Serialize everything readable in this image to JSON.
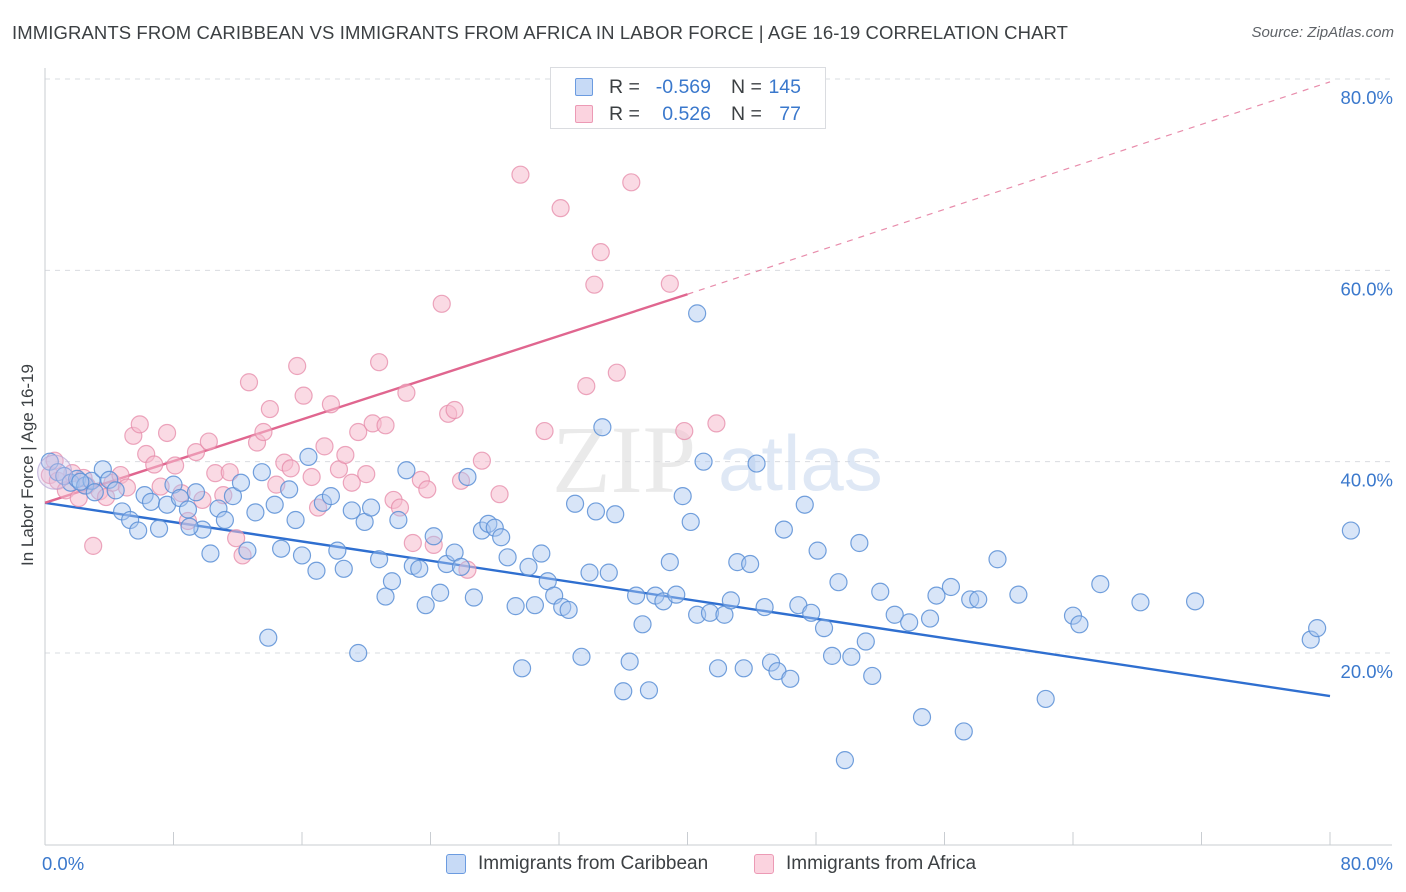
{
  "header": {
    "title": "IMMIGRANTS FROM CARIBBEAN VS IMMIGRANTS FROM AFRICA IN LABOR FORCE | AGE 16-19 CORRELATION CHART",
    "source": "Source: ZipAtlas.com"
  },
  "watermark": {
    "zip": "ZIP",
    "atlas": "atlas"
  },
  "legend": {
    "r_label": "R =",
    "n_label": "N =",
    "caribbean": {
      "r": "-0.569",
      "n": "145"
    },
    "africa": {
      "r": "0.526",
      "n": "77"
    }
  },
  "colors": {
    "caribbean_fill": "#a8c6f0",
    "caribbean_stroke": "#5b8fd6",
    "caribbean_line": "#2f6fd0",
    "africa_fill": "#f6bccd",
    "africa_stroke": "#e58aa8",
    "africa_line": "#e0668f",
    "grid": "#dadce0",
    "axis_text": "#3a78cc"
  },
  "chart_data": {
    "type": "scatter",
    "title": "IMMIGRANTS FROM CARIBBEAN VS IMMIGRANTS FROM AFRICA IN LABOR FORCE | AGE 16-19 CORRELATION CHART",
    "xlabel": "",
    "ylabel": "In Labor Force | Age 16-19",
    "xlim": [
      0,
      84
    ],
    "ylim": [
      0,
      84
    ],
    "x_tick_labels": [
      "0.0%",
      "80.0%"
    ],
    "y_tick_labels": [
      "20.0%",
      "40.0%",
      "60.0%",
      "80.0%"
    ],
    "y_ticks": [
      20,
      40,
      60,
      80
    ],
    "x_minor_ticks": [
      8,
      16,
      24,
      32,
      40,
      48,
      56,
      64,
      72,
      80
    ],
    "grid": true,
    "legend_position": "top-center",
    "series": [
      {
        "name": "Immigrants from Caribbean",
        "color": "#a8c6f0",
        "trend": {
          "x": [
            0,
            80
          ],
          "y": [
            35.7,
            15.5
          ],
          "style": "solid"
        },
        "points": [
          [
            0.3,
            40.0
          ],
          [
            0.8,
            38.9
          ],
          [
            1.2,
            38.5
          ],
          [
            1.6,
            37.8
          ],
          [
            2.0,
            38.2
          ],
          [
            2.5,
            37.5
          ],
          [
            2.9,
            38.0
          ],
          [
            3.1,
            36.8
          ],
          [
            3.6,
            39.2
          ],
          [
            4.0,
            38.1
          ],
          [
            4.4,
            37.0
          ],
          [
            4.8,
            34.8
          ],
          [
            5.3,
            33.9
          ],
          [
            5.8,
            32.8
          ],
          [
            6.2,
            36.5
          ],
          [
            6.6,
            35.8
          ],
          [
            7.1,
            33.0
          ],
          [
            7.6,
            35.5
          ],
          [
            8.0,
            37.6
          ],
          [
            8.4,
            36.2
          ],
          [
            8.9,
            35.0
          ],
          [
            9.4,
            36.8
          ],
          [
            9.8,
            32.9
          ],
          [
            10.3,
            30.4
          ],
          [
            10.8,
            35.1
          ],
          [
            11.2,
            33.9
          ],
          [
            11.7,
            36.4
          ],
          [
            12.2,
            37.8
          ],
          [
            12.6,
            30.7
          ],
          [
            13.1,
            34.7
          ],
          [
            13.5,
            38.9
          ],
          [
            13.9,
            21.6
          ],
          [
            14.3,
            35.5
          ],
          [
            14.7,
            30.9
          ],
          [
            15.2,
            37.1
          ],
          [
            15.6,
            33.9
          ],
          [
            16.0,
            30.2
          ],
          [
            16.4,
            40.5
          ],
          [
            16.9,
            28.6
          ],
          [
            17.3,
            35.7
          ],
          [
            17.8,
            36.4
          ],
          [
            18.2,
            30.7
          ],
          [
            18.6,
            28.8
          ],
          [
            19.1,
            34.9
          ],
          [
            19.5,
            20.0
          ],
          [
            19.9,
            33.7
          ],
          [
            20.3,
            35.2
          ],
          [
            20.8,
            29.8
          ],
          [
            21.2,
            25.9
          ],
          [
            21.6,
            27.5
          ],
          [
            22.0,
            33.9
          ],
          [
            22.5,
            39.1
          ],
          [
            22.9,
            29.1
          ],
          [
            23.3,
            28.8
          ],
          [
            23.7,
            25.0
          ],
          [
            24.2,
            32.2
          ],
          [
            24.6,
            26.3
          ],
          [
            25.0,
            29.3
          ],
          [
            25.5,
            30.5
          ],
          [
            25.9,
            29.0
          ],
          [
            26.3,
            38.4
          ],
          [
            26.7,
            25.8
          ],
          [
            27.2,
            32.8
          ],
          [
            27.6,
            33.5
          ],
          [
            28.0,
            33.1
          ],
          [
            28.4,
            32.1
          ],
          [
            28.8,
            30.0
          ],
          [
            29.3,
            24.9
          ],
          [
            29.7,
            18.4
          ],
          [
            30.1,
            29.0
          ],
          [
            30.5,
            25.0
          ],
          [
            30.9,
            30.4
          ],
          [
            31.3,
            27.5
          ],
          [
            31.7,
            26.0
          ],
          [
            32.2,
            24.8
          ],
          [
            32.6,
            24.5
          ],
          [
            33.0,
            35.6
          ],
          [
            33.4,
            19.6
          ],
          [
            33.9,
            28.4
          ],
          [
            34.3,
            34.8
          ],
          [
            34.7,
            43.6
          ],
          [
            35.1,
            28.4
          ],
          [
            35.5,
            34.5
          ],
          [
            36.0,
            16.0
          ],
          [
            36.4,
            19.1
          ],
          [
            36.8,
            26.0
          ],
          [
            37.2,
            23.0
          ],
          [
            37.6,
            16.1
          ],
          [
            38.0,
            26.0
          ],
          [
            38.5,
            25.4
          ],
          [
            38.9,
            29.5
          ],
          [
            39.3,
            26.1
          ],
          [
            39.7,
            36.4
          ],
          [
            40.2,
            33.7
          ],
          [
            40.6,
            24.0
          ],
          [
            41.0,
            40.0
          ],
          [
            41.4,
            24.2
          ],
          [
            41.9,
            18.4
          ],
          [
            42.3,
            24.0
          ],
          [
            42.7,
            25.5
          ],
          [
            43.1,
            29.5
          ],
          [
            43.5,
            18.4
          ],
          [
            43.9,
            29.3
          ],
          [
            44.3,
            39.8
          ],
          [
            44.8,
            24.8
          ],
          [
            45.2,
            19.0
          ],
          [
            45.6,
            18.1
          ],
          [
            46.0,
            32.9
          ],
          [
            46.4,
            17.3
          ],
          [
            46.9,
            25.0
          ],
          [
            47.3,
            35.5
          ],
          [
            47.7,
            24.2
          ],
          [
            48.1,
            30.7
          ],
          [
            48.5,
            22.6
          ],
          [
            49.0,
            19.7
          ],
          [
            49.4,
            27.4
          ],
          [
            49.8,
            8.8
          ],
          [
            50.2,
            19.6
          ],
          [
            50.7,
            31.5
          ],
          [
            51.1,
            21.2
          ],
          [
            51.5,
            17.6
          ],
          [
            52.0,
            26.4
          ],
          [
            52.9,
            24.0
          ],
          [
            53.8,
            23.2
          ],
          [
            54.6,
            13.3
          ],
          [
            55.1,
            23.6
          ],
          [
            55.5,
            26.0
          ],
          [
            56.4,
            26.9
          ],
          [
            57.2,
            11.8
          ],
          [
            57.6,
            25.6
          ],
          [
            58.1,
            25.6
          ],
          [
            59.3,
            29.8
          ],
          [
            60.6,
            26.1
          ],
          [
            62.3,
            15.2
          ],
          [
            64.0,
            23.9
          ],
          [
            64.4,
            23.0
          ],
          [
            65.7,
            27.2
          ],
          [
            68.2,
            25.3
          ],
          [
            71.6,
            25.4
          ],
          [
            78.8,
            21.4
          ],
          [
            79.2,
            22.6
          ],
          [
            81.3,
            32.8
          ],
          [
            40.6,
            55.5
          ],
          [
            2.2,
            37.9
          ],
          [
            9.0,
            33.2
          ]
        ]
      },
      {
        "name": "Immigrants from Africa",
        "color": "#f6bccd",
        "trend": {
          "x": [
            0,
            40
          ],
          "y": [
            35.7,
            57.5
          ],
          "dash_to": [
            80,
            79.7
          ],
          "style": "solid-then-dashed"
        },
        "points": [
          [
            0.3,
            38.6
          ],
          [
            0.8,
            38.0
          ],
          [
            1.3,
            37.0
          ],
          [
            1.7,
            38.8
          ],
          [
            2.1,
            36.2
          ],
          [
            2.6,
            37.5
          ],
          [
            3.0,
            31.2
          ],
          [
            3.4,
            36.9
          ],
          [
            3.8,
            36.3
          ],
          [
            4.2,
            37.8
          ],
          [
            4.7,
            38.6
          ],
          [
            5.1,
            37.3
          ],
          [
            5.5,
            42.7
          ],
          [
            5.9,
            43.9
          ],
          [
            6.3,
            40.8
          ],
          [
            6.8,
            39.7
          ],
          [
            7.2,
            37.4
          ],
          [
            7.6,
            43.0
          ],
          [
            8.1,
            39.6
          ],
          [
            8.5,
            36.7
          ],
          [
            8.9,
            33.8
          ],
          [
            9.4,
            41.0
          ],
          [
            9.8,
            36.0
          ],
          [
            10.2,
            42.1
          ],
          [
            10.6,
            38.8
          ],
          [
            11.1,
            36.5
          ],
          [
            11.5,
            38.9
          ],
          [
            11.9,
            32.0
          ],
          [
            12.3,
            30.2
          ],
          [
            12.7,
            48.3
          ],
          [
            13.2,
            42.0
          ],
          [
            13.6,
            43.1
          ],
          [
            14.0,
            45.5
          ],
          [
            14.4,
            37.6
          ],
          [
            14.9,
            39.9
          ],
          [
            15.3,
            39.3
          ],
          [
            15.7,
            50.0
          ],
          [
            16.1,
            46.9
          ],
          [
            16.6,
            38.4
          ],
          [
            17.0,
            35.2
          ],
          [
            17.4,
            41.6
          ],
          [
            17.8,
            46.0
          ],
          [
            18.3,
            39.2
          ],
          [
            18.7,
            40.7
          ],
          [
            19.1,
            37.8
          ],
          [
            19.5,
            43.1
          ],
          [
            20.0,
            38.7
          ],
          [
            20.4,
            44.0
          ],
          [
            20.8,
            50.4
          ],
          [
            21.2,
            43.8
          ],
          [
            21.7,
            36.0
          ],
          [
            22.1,
            35.2
          ],
          [
            22.5,
            47.2
          ],
          [
            22.9,
            31.5
          ],
          [
            23.4,
            38.1
          ],
          [
            23.8,
            37.1
          ],
          [
            24.2,
            31.3
          ],
          [
            24.7,
            56.5
          ],
          [
            25.1,
            45.0
          ],
          [
            25.5,
            45.4
          ],
          [
            25.9,
            38.0
          ],
          [
            26.3,
            28.7
          ],
          [
            27.2,
            40.1
          ],
          [
            28.3,
            36.6
          ],
          [
            29.6,
            70.0
          ],
          [
            31.1,
            43.2
          ],
          [
            32.1,
            66.5
          ],
          [
            33.7,
            47.9
          ],
          [
            34.2,
            58.5
          ],
          [
            34.6,
            61.9
          ],
          [
            35.6,
            49.3
          ],
          [
            36.5,
            69.2
          ],
          [
            38.9,
            58.6
          ],
          [
            39.8,
            43.2
          ],
          [
            41.8,
            44.0
          ],
          [
            0.6,
            40.1
          ],
          [
            2.4,
            38.3
          ]
        ]
      }
    ]
  },
  "bottom_legend": {
    "caribbean_label": "Immigrants from Caribbean",
    "africa_label": "Immigrants from Africa"
  }
}
